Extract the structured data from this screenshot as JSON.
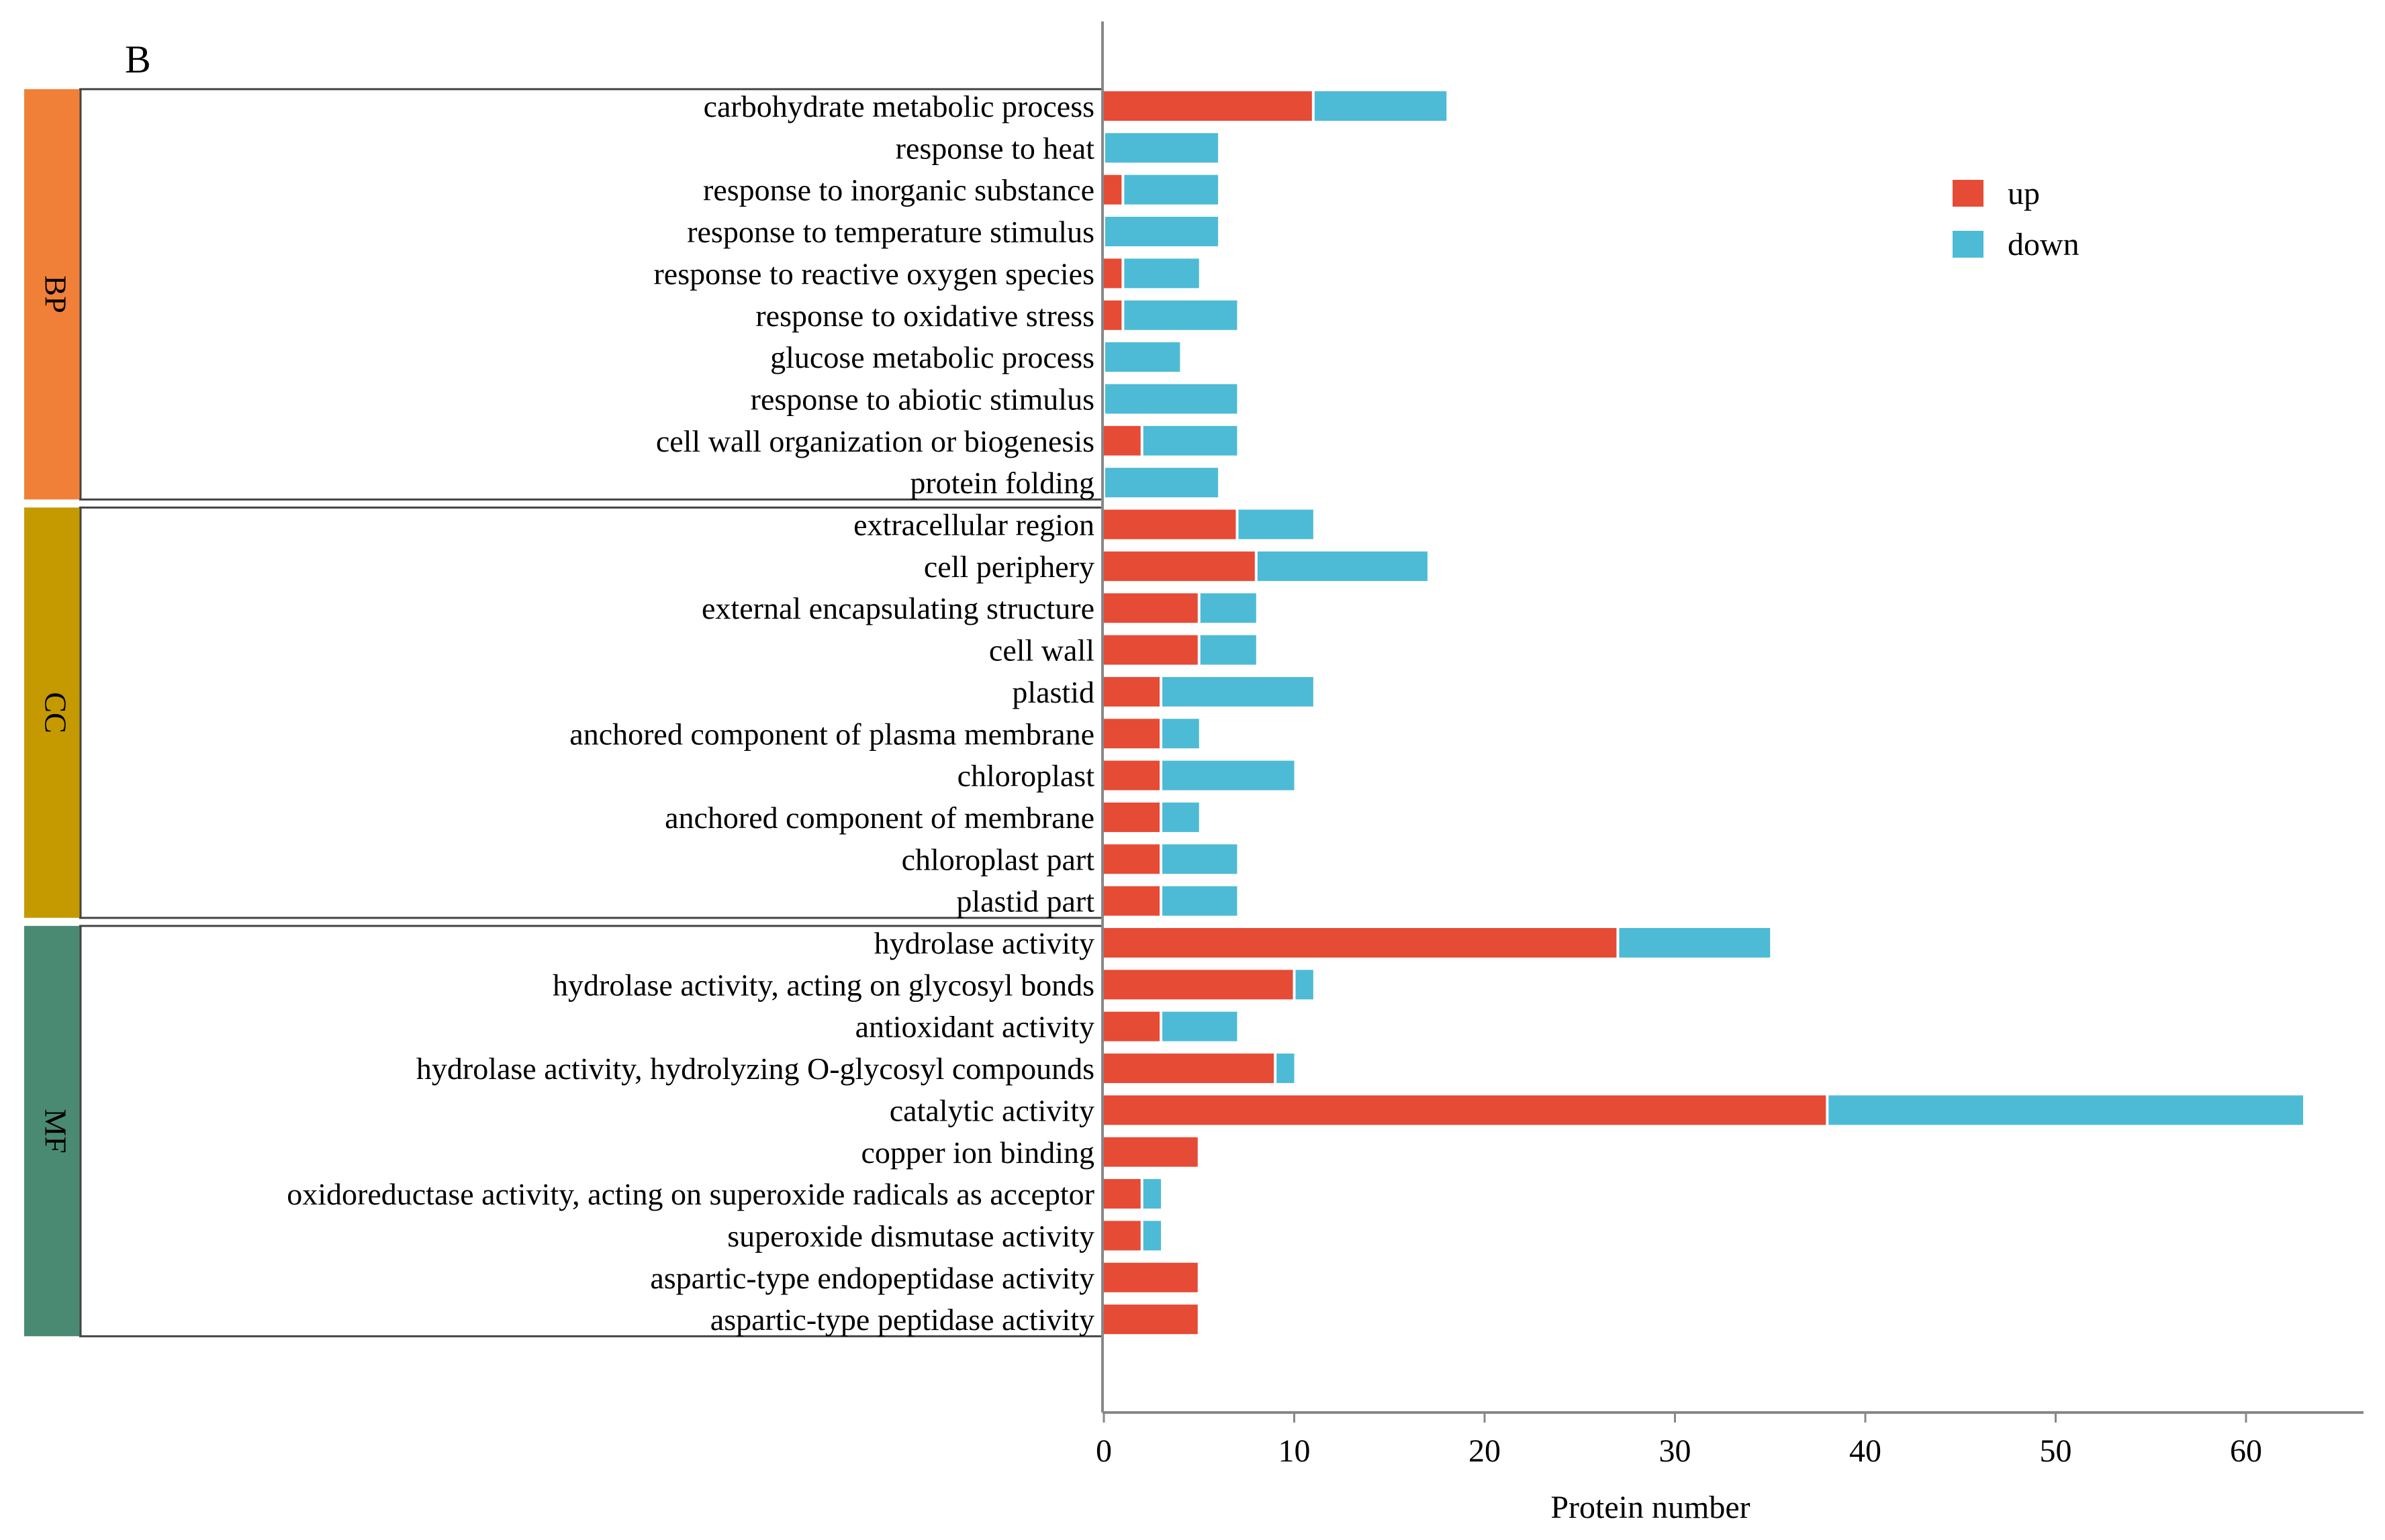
{
  "panel_label": "B",
  "colors": {
    "up": "#e64b35",
    "down": "#4dbbd5",
    "BP": "#f08038",
    "CC": "#c49a00",
    "MF": "#4a8a72"
  },
  "chart_data": {
    "type": "bar",
    "orientation": "horizontal",
    "stacked": true,
    "xlabel": "Protein number",
    "xlim": [
      0,
      66
    ],
    "xticks": [
      0,
      10,
      20,
      30,
      40,
      50,
      60
    ],
    "legend": {
      "position": "top-right",
      "entries": [
        "up",
        "down"
      ]
    },
    "groups": [
      {
        "name": "BP",
        "start": 0,
        "end": 9
      },
      {
        "name": "CC",
        "start": 10,
        "end": 19
      },
      {
        "name": "MF",
        "start": 20,
        "end": 29
      }
    ],
    "categories": [
      "carbohydrate metabolic process",
      "response to heat",
      "response to inorganic substance",
      "response to temperature stimulus",
      "response to reactive oxygen species",
      "response to oxidative stress",
      "glucose metabolic process",
      "response to abiotic stimulus",
      "cell wall organization or biogenesis",
      "protein folding",
      "extracellular region",
      "cell periphery",
      "external encapsulating structure",
      "cell wall",
      "plastid",
      "anchored component of plasma membrane",
      "chloroplast",
      "anchored component of membrane",
      "chloroplast part",
      "plastid part",
      "hydrolase activity",
      "hydrolase activity, acting on glycosyl bonds",
      "antioxidant activity",
      "hydrolase activity, hydrolyzing O-glycosyl compounds",
      "catalytic activity",
      "copper ion binding",
      "oxidoreductase activity, acting on superoxide radicals as acceptor",
      "superoxide dismutase activity",
      "aspartic-type endopeptidase activity",
      "aspartic-type peptidase activity"
    ],
    "series": [
      {
        "name": "up",
        "values": [
          11,
          0,
          1,
          0,
          1,
          1,
          0,
          0,
          2,
          0,
          7,
          8,
          5,
          5,
          3,
          3,
          3,
          3,
          3,
          3,
          27,
          10,
          3,
          9,
          38,
          5,
          2,
          2,
          5,
          5
        ]
      },
      {
        "name": "down",
        "values": [
          7,
          6,
          5,
          6,
          4,
          6,
          4,
          7,
          5,
          6,
          4,
          9,
          3,
          3,
          8,
          2,
          7,
          2,
          4,
          4,
          8,
          1,
          4,
          1,
          25,
          0,
          1,
          1,
          0,
          0
        ]
      }
    ]
  }
}
